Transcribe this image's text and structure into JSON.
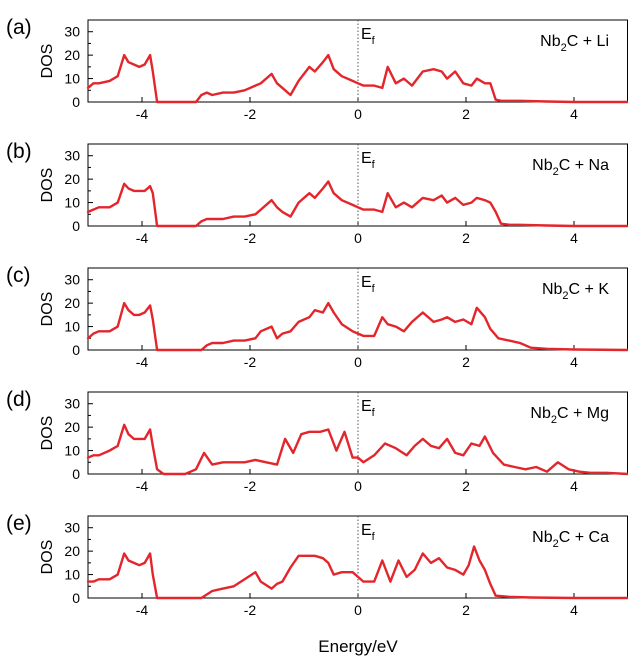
{
  "figure": {
    "xlabel": "Energy/eV",
    "ylabel": "DOS",
    "fermi_main": "E",
    "fermi_sub": "f",
    "colors": {
      "line": "#e3262c",
      "fermi": "#555555",
      "axis": "#000000"
    }
  },
  "chart_data": [
    {
      "type": "line",
      "panel_label": "(a)",
      "legend_main": "Nb",
      "legend_sub": "2",
      "legend_tail": "C + Li",
      "xlim": [
        -5,
        5
      ],
      "ylim": [
        0,
        35
      ],
      "xticks": [
        -4,
        -2,
        0,
        2,
        4
      ],
      "yticks": [
        0,
        10,
        20,
        30
      ],
      "series": [
        {
          "x": [
            -5.0,
            -4.9,
            -4.8,
            -4.6,
            -4.45,
            -4.33,
            -4.25,
            -4.15,
            -4.05,
            -3.95,
            -3.85,
            -3.8,
            -3.72,
            -3.6,
            -3.2,
            -3.0,
            -2.9,
            -2.8,
            -2.7,
            -2.5,
            -2.3,
            -2.1,
            -1.9,
            -1.8,
            -1.6,
            -1.5,
            -1.4,
            -1.25,
            -1.1,
            -0.9,
            -0.8,
            -0.65,
            -0.55,
            -0.45,
            -0.3,
            -0.1,
            0.0,
            0.1,
            0.3,
            0.45,
            0.55,
            0.7,
            0.85,
            1.0,
            1.2,
            1.4,
            1.55,
            1.65,
            1.8,
            1.95,
            2.1,
            2.2,
            2.35,
            2.45,
            2.55,
            2.65,
            2.8,
            3.0,
            3.5,
            4.0,
            5.0
          ],
          "y": [
            6,
            8,
            8,
            9,
            11,
            20,
            17,
            16,
            15,
            16,
            20,
            13,
            0,
            0,
            0,
            0,
            3,
            4,
            3,
            4,
            4,
            5,
            7,
            8,
            12,
            8,
            6,
            3,
            9,
            15,
            13,
            17,
            20,
            14,
            11,
            9,
            8,
            7,
            7,
            6,
            15,
            8,
            10,
            7,
            13,
            14,
            13,
            10,
            13,
            8,
            7,
            10,
            8,
            8,
            1,
            0.5,
            0.5,
            0.5,
            0.2,
            0,
            0
          ]
        }
      ]
    },
    {
      "type": "line",
      "panel_label": "(b)",
      "legend_main": "Nb",
      "legend_sub": "2",
      "legend_tail": "C + Na",
      "xlim": [
        -5,
        5
      ],
      "ylim": [
        0,
        35
      ],
      "xticks": [
        -4,
        -2,
        0,
        2,
        4
      ],
      "yticks": [
        0,
        10,
        20,
        30
      ],
      "series": [
        {
          "x": [
            -5.0,
            -4.9,
            -4.8,
            -4.6,
            -4.45,
            -4.33,
            -4.25,
            -4.15,
            -4.05,
            -3.95,
            -3.85,
            -3.8,
            -3.72,
            -3.6,
            -3.2,
            -3.0,
            -2.9,
            -2.8,
            -2.7,
            -2.5,
            -2.3,
            -2.1,
            -1.9,
            -1.8,
            -1.6,
            -1.5,
            -1.4,
            -1.25,
            -1.1,
            -0.9,
            -0.8,
            -0.65,
            -0.55,
            -0.45,
            -0.3,
            -0.1,
            0.0,
            0.1,
            0.3,
            0.45,
            0.55,
            0.7,
            0.85,
            1.0,
            1.2,
            1.4,
            1.55,
            1.65,
            1.8,
            1.95,
            2.1,
            2.2,
            2.35,
            2.45,
            2.55,
            2.65,
            2.8,
            3.0,
            3.5,
            4.0,
            5.0
          ],
          "y": [
            6,
            7,
            8,
            8,
            10,
            18,
            16,
            15,
            15,
            15,
            17,
            14,
            0,
            0,
            0,
            0,
            2,
            3,
            3,
            3,
            4,
            4,
            5,
            7,
            11,
            8,
            6,
            4,
            10,
            14,
            12,
            16,
            19,
            14,
            11,
            9,
            8,
            7,
            7,
            6,
            14,
            8,
            10,
            8,
            12,
            11,
            13,
            10,
            12,
            9,
            10,
            12,
            11,
            10,
            6,
            1,
            0.5,
            0.5,
            0.2,
            0,
            0
          ]
        }
      ]
    },
    {
      "type": "line",
      "panel_label": "(c)",
      "legend_main": "Nb",
      "legend_sub": "2",
      "legend_tail": "C + K",
      "xlim": [
        -5,
        5
      ],
      "ylim": [
        0,
        35
      ],
      "xticks": [
        -4,
        -2,
        0,
        2,
        4
      ],
      "yticks": [
        0,
        10,
        20,
        30
      ],
      "series": [
        {
          "x": [
            -5.0,
            -4.9,
            -4.8,
            -4.6,
            -4.45,
            -4.33,
            -4.25,
            -4.15,
            -4.05,
            -3.95,
            -3.85,
            -3.8,
            -3.72,
            -3.6,
            -3.2,
            -2.9,
            -2.8,
            -2.7,
            -2.5,
            -2.3,
            -2.1,
            -1.9,
            -1.8,
            -1.6,
            -1.5,
            -1.4,
            -1.25,
            -1.1,
            -0.9,
            -0.8,
            -0.65,
            -0.55,
            -0.45,
            -0.3,
            -0.1,
            0.0,
            0.1,
            0.3,
            0.45,
            0.55,
            0.7,
            0.85,
            1.0,
            1.2,
            1.4,
            1.55,
            1.65,
            1.8,
            1.95,
            2.1,
            2.2,
            2.35,
            2.45,
            2.6,
            2.8,
            3.0,
            3.2,
            3.5,
            4.0,
            5.0
          ],
          "y": [
            5,
            7,
            8,
            8,
            10,
            20,
            17,
            15,
            15,
            16,
            19,
            13,
            0,
            0,
            0,
            0,
            2,
            3,
            3,
            4,
            4,
            5,
            8,
            10,
            5,
            7,
            8,
            12,
            14,
            17,
            16,
            20,
            16,
            11,
            8,
            7,
            6,
            6,
            14,
            11,
            10,
            8,
            12,
            16,
            12,
            13,
            14,
            12,
            13,
            11,
            18,
            14,
            9,
            5,
            4,
            3,
            1,
            0.5,
            0.2,
            0
          ]
        }
      ]
    },
    {
      "type": "line",
      "panel_label": "(d)",
      "legend_main": "Nb",
      "legend_sub": "2",
      "legend_tail": "C + Mg",
      "xlim": [
        -5,
        5
      ],
      "ylim": [
        0,
        35
      ],
      "xticks": [
        -4,
        -2,
        0,
        2,
        4
      ],
      "yticks": [
        0,
        10,
        20,
        30
      ],
      "series": [
        {
          "x": [
            -5.0,
            -4.9,
            -4.8,
            -4.6,
            -4.45,
            -4.33,
            -4.25,
            -4.15,
            -4.05,
            -3.95,
            -3.85,
            -3.8,
            -3.72,
            -3.6,
            -3.2,
            -3.0,
            -2.85,
            -2.7,
            -2.5,
            -2.3,
            -2.1,
            -1.9,
            -1.7,
            -1.5,
            -1.35,
            -1.2,
            -1.05,
            -0.9,
            -0.7,
            -0.55,
            -0.4,
            -0.25,
            -0.1,
            0.0,
            0.1,
            0.3,
            0.5,
            0.7,
            0.9,
            1.05,
            1.2,
            1.35,
            1.5,
            1.65,
            1.8,
            1.95,
            2.1,
            2.25,
            2.35,
            2.5,
            2.7,
            2.9,
            3.1,
            3.3,
            3.5,
            3.7,
            3.9,
            4.1,
            4.3,
            4.6,
            5.0
          ],
          "y": [
            7,
            8,
            8,
            10,
            12,
            21,
            17,
            15,
            15,
            15,
            19,
            12,
            2,
            0,
            0,
            2,
            9,
            4,
            5,
            5,
            5,
            6,
            5,
            4,
            15,
            9,
            17,
            18,
            18,
            19,
            10,
            18,
            7,
            7,
            5,
            8,
            13,
            11,
            8,
            12,
            15,
            12,
            11,
            15,
            9,
            8,
            13,
            12,
            16,
            9,
            4,
            3,
            2,
            3,
            1,
            5,
            2,
            1,
            0.5,
            0.5,
            0
          ]
        }
      ]
    },
    {
      "type": "line",
      "panel_label": "(e)",
      "legend_main": "Nb",
      "legend_sub": "2",
      "legend_tail": "C + Ca",
      "xlim": [
        -5,
        5
      ],
      "ylim": [
        0,
        35
      ],
      "xticks": [
        -4,
        -2,
        0,
        2,
        4
      ],
      "yticks": [
        0,
        10,
        20,
        30
      ],
      "series": [
        {
          "x": [
            -5.0,
            -4.9,
            -4.8,
            -4.6,
            -4.45,
            -4.33,
            -4.25,
            -4.15,
            -4.05,
            -3.95,
            -3.85,
            -3.8,
            -3.72,
            -3.6,
            -3.2,
            -2.9,
            -2.7,
            -2.5,
            -2.3,
            -2.1,
            -1.9,
            -1.8,
            -1.6,
            -1.5,
            -1.4,
            -1.25,
            -1.1,
            -0.9,
            -0.8,
            -0.65,
            -0.55,
            -0.45,
            -0.3,
            -0.1,
            0.0,
            0.1,
            0.3,
            0.45,
            0.6,
            0.75,
            0.9,
            1.05,
            1.2,
            1.35,
            1.5,
            1.65,
            1.8,
            1.95,
            2.05,
            2.15,
            2.25,
            2.35,
            2.45,
            2.55,
            2.8,
            3.2,
            4.0,
            5.0
          ],
          "y": [
            7,
            7,
            8,
            8,
            10,
            19,
            16,
            15,
            14,
            15,
            19,
            10,
            0,
            0,
            0,
            0,
            3,
            4,
            5,
            8,
            11,
            7,
            4,
            6,
            7,
            13,
            18,
            18,
            18,
            17,
            15,
            10,
            11,
            11,
            9,
            7,
            7,
            16,
            7,
            16,
            9,
            12,
            19,
            15,
            17,
            13,
            12,
            10,
            14,
            22,
            16,
            12,
            6,
            1,
            0.5,
            0.2,
            0,
            0
          ]
        }
      ]
    }
  ]
}
